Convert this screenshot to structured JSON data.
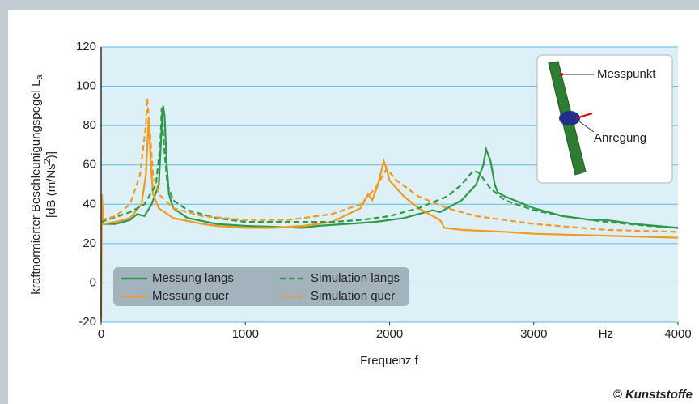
{
  "chart_data": {
    "type": "line",
    "y_label_line1": {
      "text": "kraftnormierter Beschleunigungspegel L",
      "sub": "a"
    },
    "y_label_line2": {
      "before": "[dB (m/Ns",
      "sup": "2",
      "after": ")]"
    },
    "x_label": "Frequenz f",
    "x_unit": "Hz",
    "xlim": [
      0,
      4000
    ],
    "xticks": [
      0,
      1000,
      2000,
      3000,
      4000
    ],
    "ylim": [
      -20,
      120
    ],
    "yticks": [
      -20,
      0,
      20,
      40,
      60,
      80,
      100,
      120
    ],
    "grid": true,
    "series": [
      {
        "name": "Messung längs",
        "color": "#2e9a47",
        "style": "solid",
        "x": [
          0,
          100,
          200,
          250,
          300,
          350,
          400,
          420,
          430,
          440,
          455,
          470,
          500,
          600,
          800,
          1000,
          1200,
          1400,
          1500,
          1700,
          1900,
          2100,
          2200,
          2300,
          2350,
          2400,
          2500,
          2600,
          2650,
          2670,
          2700,
          2730,
          2750,
          2800,
          3000,
          3200,
          3400,
          3500,
          3700,
          4000
        ],
        "values": [
          30,
          30,
          32,
          35,
          34,
          40,
          50,
          80,
          90,
          85,
          60,
          45,
          38,
          33,
          30,
          29,
          28.5,
          28,
          29,
          30,
          31,
          33,
          35,
          37,
          36,
          38,
          42,
          50,
          60,
          68,
          62,
          50,
          46,
          44,
          38,
          34,
          32,
          32,
          30,
          28
        ]
      },
      {
        "name": "Messung quer",
        "color": "#f39a1e",
        "style": "solid",
        "x": [
          0,
          5,
          15,
          100,
          200,
          280,
          310,
          330,
          345,
          360,
          400,
          500,
          700,
          800,
          1000,
          1200,
          1400,
          1600,
          1800,
          1850,
          1880,
          1920,
          1960,
          1980,
          2000,
          2100,
          2200,
          2300,
          2350,
          2380,
          2500,
          2800,
          3000,
          3500,
          4000
        ],
        "values": [
          -18,
          45,
          30,
          31,
          33,
          40,
          55,
          84,
          60,
          45,
          38,
          33,
          30,
          29,
          28,
          28,
          29,
          31,
          38,
          45,
          42,
          50,
          62,
          58,
          52,
          44,
          38,
          34,
          32,
          28,
          27,
          26,
          25,
          24,
          23
        ]
      },
      {
        "name": "Simulation längs",
        "color": "#2e9a47",
        "style": "dashed",
        "x": [
          0,
          200,
          300,
          380,
          410,
          420,
          435,
          460,
          500,
          600,
          800,
          1000,
          1200,
          1400,
          1600,
          1800,
          2000,
          2200,
          2400,
          2500,
          2580,
          2620,
          2700,
          2800,
          3000,
          3200,
          3500,
          3800,
          4000
        ],
        "values": [
          31,
          36,
          40,
          50,
          70,
          89,
          70,
          50,
          42,
          37,
          33,
          31,
          31,
          31,
          31,
          32,
          34,
          38,
          44,
          50,
          57,
          56,
          48,
          42,
          37,
          34,
          31,
          29,
          28
        ]
      },
      {
        "name": "Simulation quer",
        "color": "#f39a1e",
        "style": "dashed",
        "x": [
          0,
          100,
          200,
          270,
          310,
          320,
          335,
          360,
          400,
          500,
          700,
          1000,
          1300,
          1600,
          1800,
          1900,
          1980,
          2050,
          2200,
          2400,
          2600,
          3000,
          3500,
          4000
        ],
        "values": [
          32,
          34,
          40,
          55,
          80,
          94,
          80,
          55,
          45,
          38,
          34,
          32,
          32,
          35,
          40,
          48,
          58,
          52,
          44,
          38,
          34,
          30,
          27,
          26
        ]
      }
    ],
    "inset": {
      "measure_point": "Messpunkt",
      "excitation": "Anregung"
    },
    "credit": "© Kunststoffe"
  }
}
